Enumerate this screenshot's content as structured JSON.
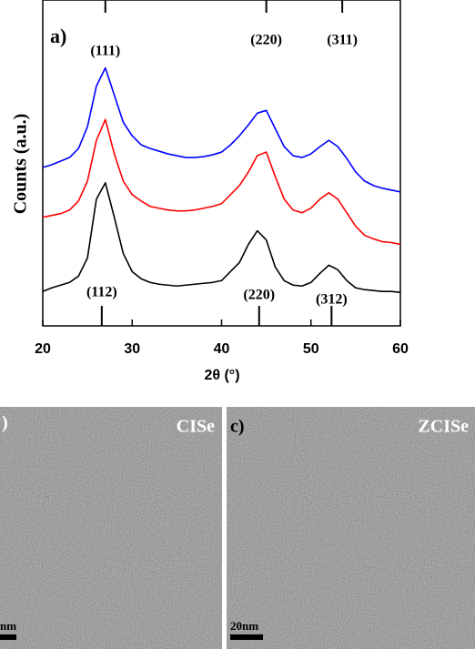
{
  "chart_data": {
    "type": "line",
    "panel_label": "a)",
    "xlabel": "2θ (°)",
    "ylabel": "Counts (a.u.)",
    "xlim": [
      20,
      60
    ],
    "xticks": [
      20,
      30,
      40,
      50,
      60
    ],
    "ylim": [
      0,
      360
    ],
    "x": [
      20,
      21,
      22,
      23,
      24,
      25,
      26,
      27,
      28,
      29,
      30,
      31,
      32,
      33,
      34,
      35,
      36,
      37,
      38,
      39,
      40,
      41,
      42,
      43,
      44,
      45,
      46,
      47,
      48,
      49,
      50,
      51,
      52,
      53,
      54,
      55,
      56,
      57,
      58,
      59,
      60
    ],
    "series": [
      {
        "color": "#0000ff",
        "values": [
          175,
          178,
          182,
          186,
          196,
          220,
          265,
          285,
          255,
          225,
          210,
          200,
          196,
          193,
          190,
          188,
          186,
          186,
          187,
          189,
          192,
          200,
          210,
          222,
          235,
          238,
          218,
          198,
          188,
          186,
          190,
          198,
          205,
          198,
          185,
          170,
          160,
          155,
          152,
          150,
          148
        ]
      },
      {
        "color": "#ff0000",
        "values": [
          120,
          122,
          124,
          128,
          138,
          160,
          205,
          228,
          190,
          160,
          145,
          138,
          132,
          130,
          128,
          127,
          127,
          128,
          130,
          132,
          135,
          145,
          155,
          170,
          188,
          192,
          165,
          140,
          128,
          125,
          130,
          140,
          147,
          140,
          125,
          110,
          100,
          96,
          93,
          92,
          90
        ]
      },
      {
        "color": "#000000",
        "values": [
          38,
          42,
          45,
          48,
          55,
          75,
          140,
          158,
          120,
          80,
          60,
          52,
          48,
          46,
          45,
          44,
          45,
          46,
          47,
          48,
          50,
          60,
          70,
          90,
          105,
          95,
          65,
          50,
          45,
          44,
          48,
          58,
          67,
          62,
          50,
          42,
          40,
          39,
          38,
          38,
          37
        ]
      }
    ],
    "top_labels": [
      {
        "text": "(111)",
        "x": 27
      },
      {
        "text": "(220)",
        "x": 45
      },
      {
        "text": "(311)",
        "x": 53.5
      }
    ],
    "bottom_labels": [
      {
        "text": "(112)",
        "x": 26.6
      },
      {
        "text": "(220)",
        "x": 44.2
      },
      {
        "text": "(312)",
        "x": 52.3
      }
    ]
  },
  "images": [
    {
      "label": ")",
      "name": "CISe",
      "scale": "nm"
    },
    {
      "label": "c)",
      "name": "ZCISe",
      "scale": "20nm"
    }
  ]
}
